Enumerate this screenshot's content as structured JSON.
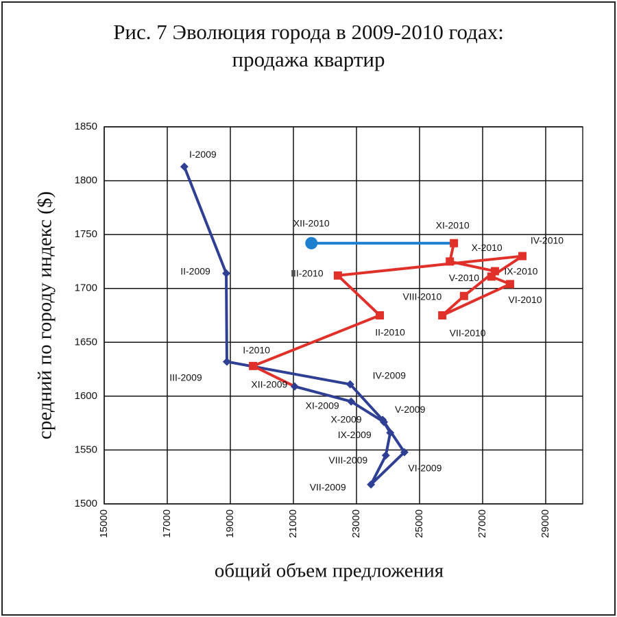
{
  "chart_data": {
    "type": "line",
    "title": [
      "Рис. 7 Эволюция города в 2009-2010 годах:",
      "продажа квартир"
    ],
    "xlabel": "общий объем предложения",
    "ylabel": "средний по городу индекс ($)",
    "xlim": [
      15000,
      30000
    ],
    "xticks": [
      15000,
      17000,
      19000,
      21000,
      23000,
      25000,
      27000,
      29000
    ],
    "ylim": [
      1500,
      1850
    ],
    "yticks": [
      1500,
      1550,
      1600,
      1650,
      1700,
      1750,
      1800,
      1850
    ],
    "grid": true,
    "series": [
      {
        "color": "#2e3f94",
        "marker": "diamond",
        "labels": [
          "I-2009",
          "II-2009",
          "III-2009",
          "IV-2009",
          "V-2009",
          "VI-2009",
          "VII-2009",
          "VIII-2009",
          "IX-2009",
          "X-2009",
          "XI-2009",
          "XII-2009"
        ],
        "x": [
          17540,
          18870,
          18890,
          22800,
          23830,
          24520,
          23460,
          23930,
          24070,
          23870,
          22830,
          21040
        ],
        "values": [
          1813,
          1714,
          1632,
          1611,
          1578,
          1548,
          1518,
          1545,
          1566,
          1576,
          1595,
          1609
        ]
      },
      {
        "color": "#e0302a",
        "marker": "square",
        "labels": [
          "I-2010",
          "II-2010",
          "III-2010",
          "IV-2010",
          "V-2010",
          "VI-2010",
          "VII-2010",
          "VIII-2010",
          "IX-2010",
          "X-2010",
          "XI-2010"
        ],
        "x": [
          19720,
          23740,
          22410,
          28260,
          27280,
          27870,
          25720,
          26410,
          27390,
          25960,
          26090
        ],
        "values": [
          1628,
          1675,
          1712,
          1730,
          1711,
          1704,
          1675,
          1693,
          1716,
          1725,
          1742
        ]
      },
      {
        "color": "#1f7fcf",
        "marker": "circle",
        "labels": [
          "XII-2010"
        ],
        "x": [
          21570
        ],
        "values": [
          1742
        ]
      }
    ]
  }
}
